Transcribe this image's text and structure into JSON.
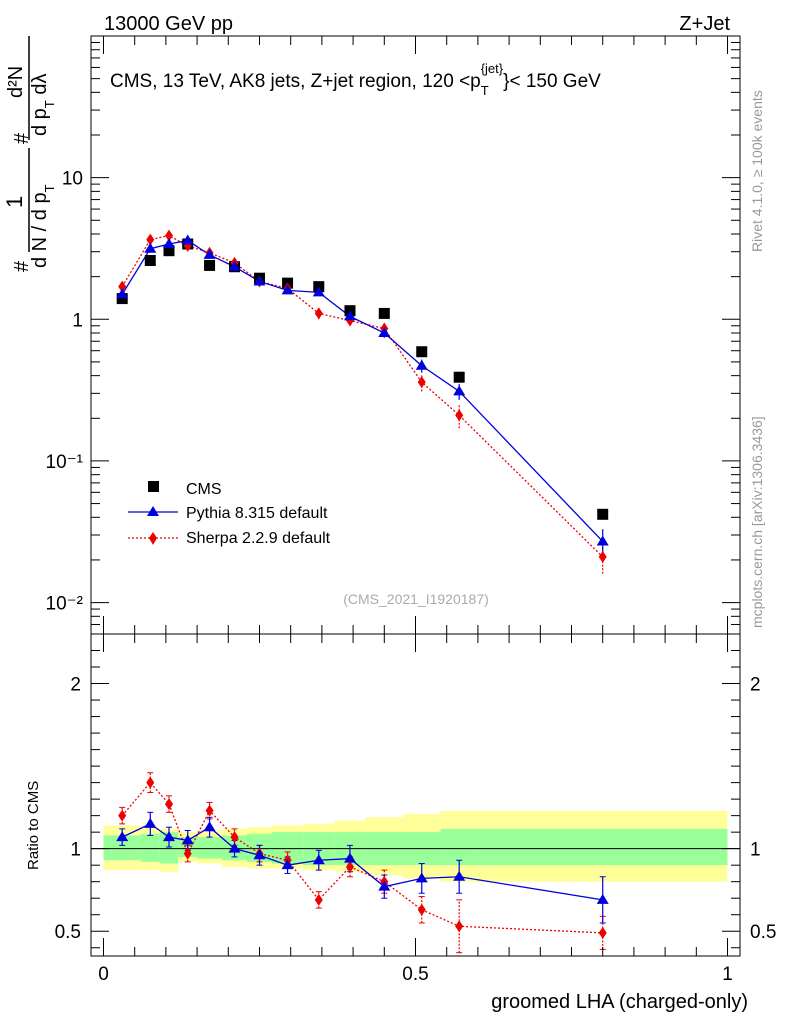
{
  "header": {
    "energy_label": "13000 GeV pp",
    "process_label": "Z+Jet"
  },
  "side_labels": {
    "rivet": "Rivet 4.1.0, ≥ 100k events",
    "mcplots": "mcplots.cern.ch [arXiv:1306.3436]"
  },
  "chart_data": [
    {
      "type": "scatter",
      "panel": "main",
      "title": "CMS, 13 TeV, AK8 jets, Z+jet region, 120 <p_T^{jet}< 150 GeV",
      "title_parts": {
        "main": "CMS, 13 TeV, AK8 jets, Z+jet region, 120 <p",
        "sub": "T",
        "sup": "{jet}",
        "tail": "}< 150 GeV"
      },
      "ylabel_parts": {
        "hash": "#",
        "one": "1",
        "den_main": "d N / d p",
        "den_sub": "T",
        "hash2": "#",
        "d2N": "d²N",
        "den2_main": "d p",
        "den2_sub": "T",
        "den2_tail": " dλ"
      },
      "yscale": "log",
      "ylim": [
        0.006,
        100
      ],
      "xlim": [
        -0.02,
        1.02
      ],
      "y_tick_labels": [
        "10⁻²",
        "10⁻¹",
        "1",
        "10"
      ],
      "watermark": "(CMS_2021_I1920187)",
      "legend_position": "bottom-left",
      "series": [
        {
          "name": "CMS",
          "style": "black-square",
          "color": "#000000",
          "x": [
            0.03,
            0.075,
            0.105,
            0.135,
            0.17,
            0.21,
            0.25,
            0.295,
            0.345,
            0.395,
            0.45,
            0.51,
            0.57,
            0.8
          ],
          "y": [
            1.4,
            2.6,
            3.05,
            3.4,
            2.4,
            2.35,
            1.95,
            1.8,
            1.7,
            1.15,
            1.1,
            0.59,
            0.39,
            0.042
          ]
        },
        {
          "name": "Pythia 8.315 default",
          "style": "blue-triangle-solid",
          "color": "#0000dd",
          "x": [
            0.03,
            0.075,
            0.105,
            0.135,
            0.17,
            0.21,
            0.25,
            0.295,
            0.345,
            0.395,
            0.45,
            0.51,
            0.57,
            0.8
          ],
          "y": [
            1.5,
            3.15,
            3.4,
            3.6,
            2.85,
            2.35,
            1.85,
            1.6,
            1.55,
            1.05,
            0.8,
            0.47,
            0.31,
            0.027
          ],
          "yerr": [
            0.08,
            0.12,
            0.12,
            0.14,
            0.1,
            0.1,
            0.08,
            0.08,
            0.08,
            0.06,
            0.06,
            0.05,
            0.04,
            0.006
          ]
        },
        {
          "name": "Sherpa 2.2.9 default",
          "style": "red-diamond-dotted",
          "color": "#ee0000",
          "x": [
            0.03,
            0.075,
            0.105,
            0.135,
            0.17,
            0.21,
            0.25,
            0.295,
            0.345,
            0.395,
            0.45,
            0.51,
            0.57,
            0.8
          ],
          "y": [
            1.7,
            3.65,
            3.9,
            3.3,
            2.95,
            2.5,
            1.85,
            1.65,
            1.1,
            0.98,
            0.86,
            0.36,
            0.21,
            0.021
          ],
          "yerr": [
            0.1,
            0.2,
            0.2,
            0.18,
            0.15,
            0.12,
            0.1,
            0.1,
            0.1,
            0.08,
            0.08,
            0.05,
            0.04,
            0.005
          ]
        }
      ]
    },
    {
      "type": "scatter",
      "panel": "ratio",
      "ylabel": "Ratio to CMS",
      "xlabel": "groomed LHA (charged-only)",
      "ylim": [
        0.35,
        2.3
      ],
      "xlim": [
        -0.02,
        1.02
      ],
      "y_ticks": [
        0.5,
        1,
        2
      ],
      "y_tick_labels": [
        "0.5",
        "1",
        "2"
      ],
      "x_ticks": [
        0,
        0.5,
        1
      ],
      "x_tick_labels": [
        "0",
        "0.5",
        "1"
      ],
      "reference_line": 1,
      "bands": {
        "edges": [
          0,
          0.06,
          0.09,
          0.12,
          0.15,
          0.19,
          0.23,
          0.27,
          0.32,
          0.37,
          0.42,
          0.48,
          0.54,
          0.6,
          1.0
        ],
        "green_lo": [
          0.93,
          0.92,
          0.91,
          0.95,
          0.94,
          0.93,
          0.92,
          0.91,
          0.9,
          0.9,
          0.9,
          0.9,
          0.9,
          0.9
        ],
        "green_hi": [
          1.08,
          1.09,
          1.1,
          1.07,
          1.07,
          1.08,
          1.09,
          1.1,
          1.1,
          1.1,
          1.1,
          1.1,
          1.12,
          1.12
        ],
        "yellow_lo": [
          0.87,
          0.87,
          0.86,
          0.92,
          0.91,
          0.89,
          0.88,
          0.88,
          0.87,
          0.86,
          0.84,
          0.82,
          0.8,
          0.8
        ],
        "yellow_hi": [
          1.14,
          1.13,
          1.12,
          1.1,
          1.11,
          1.12,
          1.13,
          1.14,
          1.15,
          1.17,
          1.19,
          1.21,
          1.23,
          1.23
        ],
        "green_color": "#99ff99",
        "yellow_color": "#ffff99"
      },
      "series": [
        {
          "name": "Pythia 8.315 default",
          "color": "#0000dd",
          "x": [
            0.03,
            0.075,
            0.105,
            0.135,
            0.17,
            0.21,
            0.25,
            0.295,
            0.345,
            0.395,
            0.45,
            0.51,
            0.57,
            0.8
          ],
          "y": [
            1.07,
            1.15,
            1.07,
            1.05,
            1.13,
            1.0,
            0.96,
            0.9,
            0.93,
            0.94,
            0.77,
            0.82,
            0.83,
            0.69
          ],
          "yerr": [
            0.05,
            0.07,
            0.06,
            0.06,
            0.06,
            0.05,
            0.06,
            0.05,
            0.06,
            0.08,
            0.07,
            0.09,
            0.1,
            0.14
          ]
        },
        {
          "name": "Sherpa 2.2.9 default",
          "color": "#ee0000",
          "x": [
            0.03,
            0.075,
            0.105,
            0.135,
            0.17,
            0.21,
            0.25,
            0.295,
            0.345,
            0.395,
            0.45,
            0.51,
            0.57,
            0.8
          ],
          "y": [
            1.2,
            1.4,
            1.27,
            0.97,
            1.23,
            1.07,
            0.97,
            0.93,
            0.69,
            0.89,
            0.8,
            0.63,
            0.53,
            0.49
          ],
          "yerr": [
            0.05,
            0.06,
            0.05,
            0.05,
            0.05,
            0.05,
            0.05,
            0.05,
            0.05,
            0.06,
            0.07,
            0.08,
            0.16,
            0.1
          ]
        }
      ]
    }
  ]
}
